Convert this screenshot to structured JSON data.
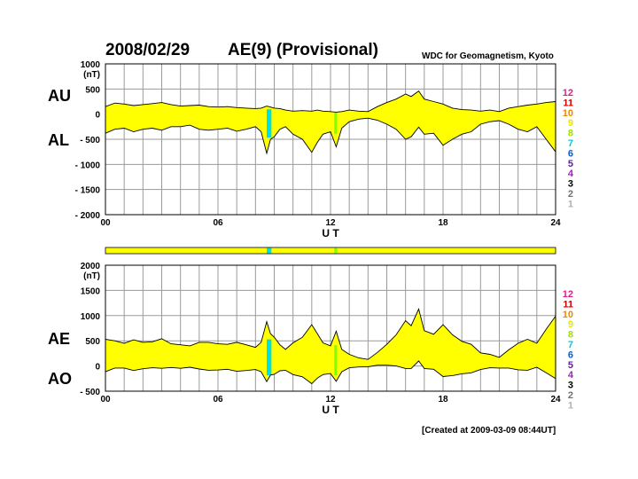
{
  "header": {
    "date": "2008/02/29",
    "title": "AE(9)  (Provisional)",
    "source": "WDC for Geomagnetism, Kyoto",
    "created": "[Created at 2009-03-09 08:44UT]"
  },
  "labels": {
    "au": "AU",
    "al": "AL",
    "ae": "AE",
    "ao": "AO"
  },
  "colors": {
    "fill": "#ffff00",
    "line": "#000000",
    "grid": "#9a9a9a",
    "cyan": "#00e0e0",
    "green": "#7fff00"
  },
  "chart_data": [
    {
      "type": "area",
      "name": "AU/AL",
      "xlabel": "U T",
      "unit": "(nT)",
      "xlim": [
        0,
        24
      ],
      "ylim": [
        -2000,
        1000
      ],
      "xticks": [
        0,
        6,
        12,
        18,
        24
      ],
      "xtick_labels": [
        "00",
        "06",
        "12",
        "18",
        "24"
      ],
      "yticks": [
        1000,
        500,
        0,
        -500,
        -1000,
        -1500,
        -2000
      ],
      "ytick_labels": [
        "1000",
        "500",
        "0",
        "- 500",
        "- 1000",
        "- 1500",
        "- 2000"
      ],
      "grid": true,
      "x": [
        0,
        0.5,
        1,
        1.5,
        2,
        2.5,
        3,
        3.5,
        4,
        4.5,
        5,
        5.5,
        6,
        6.5,
        7,
        7.5,
        8,
        8.3,
        8.6,
        8.8,
        9,
        9.3,
        9.6,
        10,
        10.5,
        11,
        11.3,
        11.6,
        12,
        12.3,
        12.6,
        13,
        13.5,
        14,
        14.5,
        15,
        15.5,
        16,
        16.3,
        16.7,
        17,
        17.5,
        18,
        18.5,
        19,
        19.5,
        20,
        20.5,
        21,
        21.5,
        22,
        22.5,
        23,
        23.5,
        24
      ],
      "series": [
        {
          "name": "AU",
          "values": [
            150,
            220,
            200,
            170,
            190,
            210,
            230,
            190,
            160,
            170,
            180,
            150,
            140,
            150,
            130,
            120,
            110,
            120,
            160,
            140,
            120,
            110,
            80,
            60,
            70,
            60,
            80,
            60,
            50,
            40,
            50,
            80,
            60,
            50,
            150,
            230,
            300,
            400,
            350,
            460,
            300,
            250,
            200,
            120,
            90,
            80,
            60,
            80,
            50,
            120,
            150,
            180,
            200,
            230,
            250
          ]
        },
        {
          "name": "AL",
          "values": [
            -380,
            -300,
            -280,
            -350,
            -300,
            -280,
            -320,
            -250,
            -250,
            -220,
            -300,
            -320,
            -300,
            -280,
            -340,
            -300,
            -250,
            -350,
            -780,
            -500,
            -450,
            -300,
            -250,
            -400,
            -500,
            -760,
            -560,
            -400,
            -350,
            -650,
            -280,
            -150,
            -100,
            -80,
            -120,
            -200,
            -300,
            -500,
            -450,
            -260,
            -400,
            -380,
            -620,
            -500,
            -400,
            -350,
            -200,
            -150,
            -130,
            -200,
            -300,
            -350,
            -250,
            -500,
            -750
          ]
        }
      ],
      "highlights": [
        {
          "from": 8.6,
          "to": 8.85,
          "color": "cyan"
        },
        {
          "from": 12.2,
          "to": 12.35,
          "color": "green"
        }
      ]
    },
    {
      "type": "area",
      "name": "AE/AO",
      "xlabel": "U T",
      "unit": "(nT)",
      "xlim": [
        0,
        24
      ],
      "ylim": [
        -500,
        2000
      ],
      "xticks": [
        0,
        6,
        12,
        18,
        24
      ],
      "xtick_labels": [
        "00",
        "06",
        "12",
        "18",
        "24"
      ],
      "yticks": [
        2000,
        1500,
        1000,
        500,
        0,
        -500
      ],
      "ytick_labels": [
        "2000",
        "1500",
        "1000",
        "500",
        "0",
        "- 500"
      ],
      "grid": true,
      "x": [
        0,
        0.5,
        1,
        1.5,
        2,
        2.5,
        3,
        3.5,
        4,
        4.5,
        5,
        5.5,
        6,
        6.5,
        7,
        7.5,
        8,
        8.3,
        8.6,
        8.8,
        9,
        9.3,
        9.6,
        10,
        10.5,
        11,
        11.3,
        11.6,
        12,
        12.3,
        12.6,
        13,
        13.5,
        14,
        14.5,
        15,
        15.5,
        16,
        16.3,
        16.7,
        17,
        17.5,
        18,
        18.5,
        19,
        19.5,
        20,
        20.5,
        21,
        21.5,
        22,
        22.5,
        23,
        23.5,
        24
      ],
      "series": [
        {
          "name": "AE",
          "values": [
            530,
            500,
            450,
            520,
            470,
            480,
            540,
            440,
            420,
            400,
            470,
            470,
            440,
            430,
            470,
            420,
            370,
            470,
            880,
            640,
            570,
            420,
            330,
            460,
            570,
            820,
            640,
            460,
            400,
            690,
            330,
            230,
            160,
            130,
            270,
            430,
            620,
            900,
            800,
            1130,
            700,
            630,
            820,
            620,
            490,
            430,
            260,
            230,
            170,
            320,
            450,
            530,
            450,
            730,
            990
          ]
        },
        {
          "name": "AO",
          "values": [
            -115,
            -40,
            -40,
            -90,
            -55,
            -35,
            -45,
            -30,
            -45,
            -25,
            -60,
            -85,
            -80,
            -65,
            -105,
            -90,
            -70,
            -115,
            -310,
            -180,
            -165,
            -95,
            -85,
            -170,
            -215,
            -350,
            -240,
            -170,
            -150,
            -305,
            -115,
            -35,
            -20,
            -15,
            15,
            15,
            0,
            -50,
            -50,
            100,
            -50,
            -65,
            -210,
            -190,
            -155,
            -135,
            -70,
            -35,
            -40,
            -40,
            -75,
            -85,
            -25,
            -135,
            -250
          ]
        }
      ],
      "highlights": [
        {
          "from": 8.6,
          "to": 8.85,
          "color": "cyan"
        },
        {
          "from": 12.2,
          "to": 12.35,
          "color": "green"
        }
      ]
    }
  ],
  "activity_bar": {
    "highlights": [
      {
        "from": 8.6,
        "to": 8.85,
        "color": "cyan"
      },
      {
        "from": 12.2,
        "to": 12.35,
        "color": "green"
      }
    ]
  },
  "legend": [
    {
      "label": "12",
      "color": "#e0208a"
    },
    {
      "label": "11",
      "color": "#d00000"
    },
    {
      "label": "10",
      "color": "#ee8800"
    },
    {
      "label": "9",
      "color": "#e8e800"
    },
    {
      "label": "8",
      "color": "#a0e000"
    },
    {
      "label": "7",
      "color": "#00c8e0"
    },
    {
      "label": "6",
      "color": "#0060d0"
    },
    {
      "label": "5",
      "color": "#6020a0"
    },
    {
      "label": "4",
      "color": "#a020c0"
    },
    {
      "label": "3",
      "color": "#000000"
    },
    {
      "label": "2",
      "color": "#707070"
    },
    {
      "label": "1",
      "color": "#b0b0b0"
    }
  ]
}
